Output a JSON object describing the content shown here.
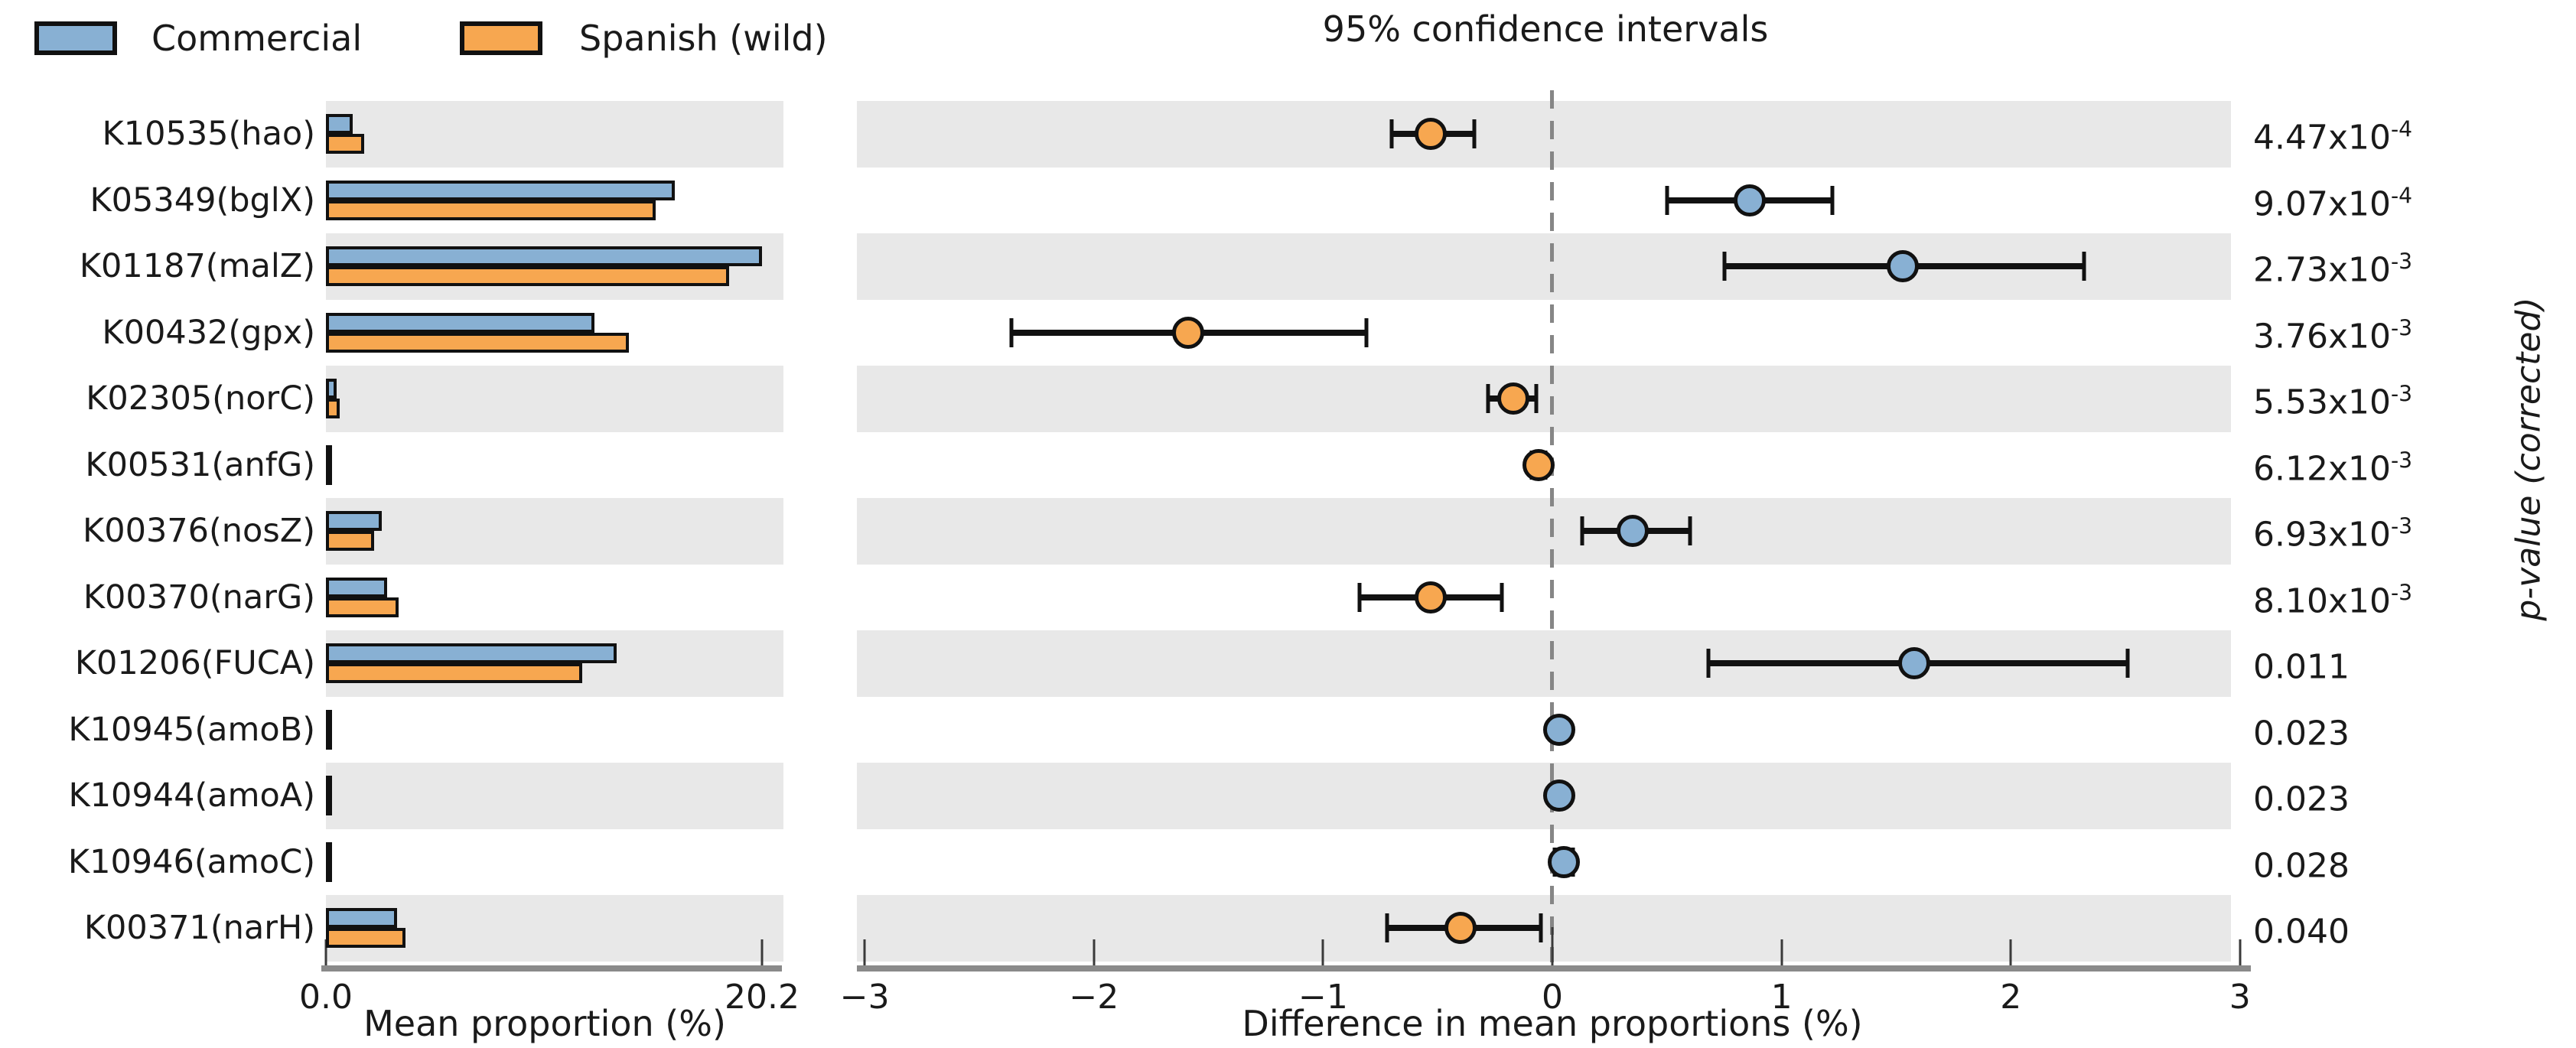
{
  "title": "95% confidence intervals",
  "legend": {
    "items": [
      {
        "label": "Commercial",
        "color": "#88b0d3"
      },
      {
        "label": "Spanish (wild)",
        "color": "#f7a750"
      }
    ]
  },
  "chart_data": {
    "type": "bar",
    "subtype": "extended-error-bar (STAMP)",
    "categories": [
      "K10535(hao)",
      "K05349(bglX)",
      "K01187(malZ)",
      "K00432(gpx)",
      "K02305(norC)",
      "K00531(anfG)",
      "K00376(nosZ)",
      "K00370(narG)",
      "K01206(FUCA)",
      "K10945(amoB)",
      "K10944(amoA)",
      "K10946(amoC)",
      "K00371(narH)"
    ],
    "series": [
      {
        "name": "Commercial",
        "color": "#88b0d3",
        "mean_proportion_pct": [
          1.25,
          16.15,
          20.2,
          12.45,
          0.48,
          0.03,
          2.6,
          2.85,
          13.45,
          0.05,
          0.05,
          0.08,
          3.3
        ]
      },
      {
        "name": "Spanish (wild)",
        "color": "#f7a750",
        "mean_proportion_pct": [
          1.78,
          15.29,
          18.67,
          14.04,
          0.65,
          0.09,
          2.25,
          3.38,
          11.87,
          0.02,
          0.02,
          0.03,
          3.7
        ]
      }
    ],
    "difference_in_mean_proportions_pct": {
      "values": [
        -0.53,
        0.86,
        1.53,
        -1.59,
        -0.17,
        -0.06,
        0.35,
        -0.53,
        1.58,
        0.03,
        0.03,
        0.05,
        -0.4
      ],
      "ci_low": [
        -0.7,
        0.5,
        0.75,
        -2.36,
        -0.28,
        -0.09,
        0.13,
        -0.84,
        0.68,
        0.01,
        0.01,
        0.01,
        -0.72
      ],
      "ci_high": [
        -0.34,
        1.22,
        2.32,
        -0.81,
        -0.07,
        -0.03,
        0.6,
        -0.22,
        2.51,
        0.05,
        0.05,
        0.09,
        -0.05
      ],
      "dot_colored_by_higher_group": [
        "Spanish (wild)",
        "Commercial",
        "Commercial",
        "Spanish (wild)",
        "Spanish (wild)",
        "Spanish (wild)",
        "Commercial",
        "Spanish (wild)",
        "Commercial",
        "Commercial",
        "Commercial",
        "Commercial",
        "Spanish (wild)"
      ]
    },
    "p_values": [
      {
        "base": "4.47x10",
        "sup": "-4"
      },
      {
        "base": "9.07x10",
        "sup": "-4"
      },
      {
        "base": "2.73x10",
        "sup": "-3"
      },
      {
        "base": "3.76x10",
        "sup": "-3"
      },
      {
        "base": "5.53x10",
        "sup": "-3"
      },
      {
        "base": "6.12x10",
        "sup": "-3"
      },
      {
        "base": "6.93x10",
        "sup": "-3"
      },
      {
        "base": "8.10x10",
        "sup": "-3"
      },
      {
        "base": "0.011",
        "sup": ""
      },
      {
        "base": "0.023",
        "sup": ""
      },
      {
        "base": "0.023",
        "sup": ""
      },
      {
        "base": "0.028",
        "sup": ""
      },
      {
        "base": "0.040",
        "sup": ""
      }
    ],
    "axes": {
      "left": {
        "label": "Mean proportion (%)",
        "min": 0,
        "max": 20.2,
        "ticks": [
          0,
          20.2
        ],
        "tick_labels": [
          "0.0",
          "20.2"
        ]
      },
      "right": {
        "label": "Difference in mean proportions (%)",
        "min": -3,
        "max": 3,
        "ticks": [
          -3,
          -2,
          -1,
          0,
          1,
          2,
          3
        ],
        "tick_labels": [
          "−3",
          "−2",
          "−1",
          "0",
          "1",
          "2",
          "3"
        ]
      },
      "p_column_label": "p-value (corrected)"
    },
    "style": {
      "stripe_color": "#e8e8e8",
      "outline_color": "#111111",
      "axis_line_color": "#8a8a8a",
      "zero_line_color": "#868686",
      "grid": false,
      "legend_position": "top-left"
    }
  }
}
